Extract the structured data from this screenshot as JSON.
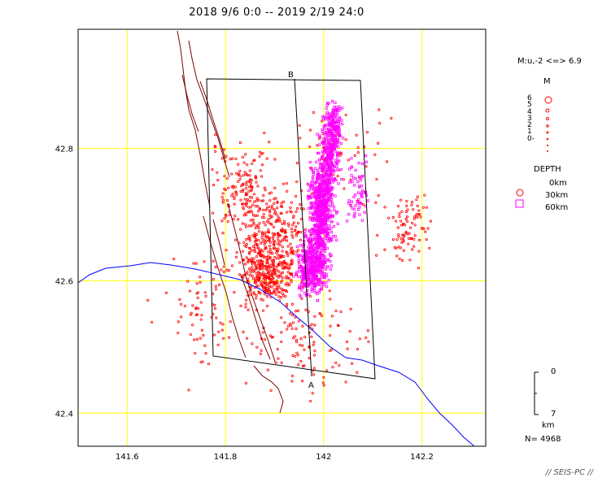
{
  "title": "2018 9/6 0:0 -- 2019 2/19 24:0",
  "axes": {
    "x_ticks": [
      {
        "value": 141.6,
        "label": "141.6"
      },
      {
        "value": 141.8,
        "label": "141.8"
      },
      {
        "value": 142.0,
        "label": "142"
      },
      {
        "value": 142.2,
        "label": "142.2"
      }
    ],
    "y_ticks": [
      {
        "value": 42.8,
        "label": "42.8"
      },
      {
        "value": 42.6,
        "label": "42.6"
      },
      {
        "value": 42.4,
        "label": "42.4"
      }
    ],
    "lon_range": [
      141.5,
      142.33
    ],
    "lat_range": [
      42.35,
      42.98
    ]
  },
  "section": {
    "label_a": "A",
    "label_b": "B"
  },
  "legend": {
    "magnitude_header": "M:u,-2 <=> 6.9",
    "m_label": "M",
    "m_scale": [
      "6",
      "5",
      "4",
      "3",
      "2",
      "1",
      "0-"
    ],
    "depth_label": "DEPTH",
    "depths": [
      "0km",
      "30km",
      "60km"
    ],
    "scale_top": "0",
    "scale_bottom": "7",
    "scale_unit": "km",
    "count": "N= 4968"
  },
  "footer": "// SEIS-PC //",
  "colors": {
    "grid": "#ffff00",
    "shallow": "#ff0000",
    "deep": "#ff00ff",
    "coast": "#0000ff",
    "fault": "#800000",
    "frame": "#000000"
  }
}
